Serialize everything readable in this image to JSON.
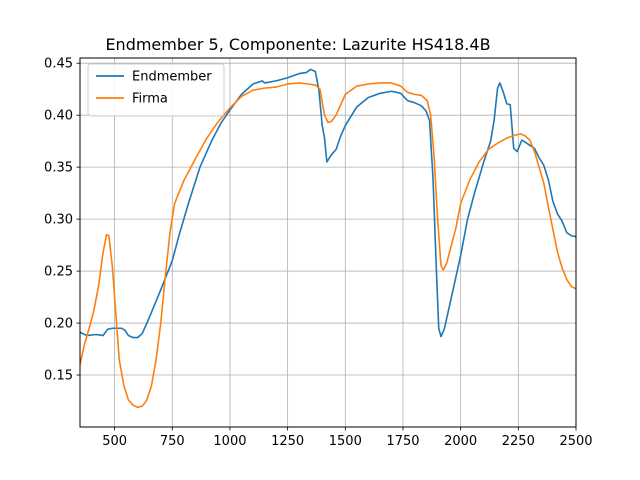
{
  "chart_data": {
    "type": "line",
    "title": "Endmember 5, Componente: Lazurite HS418.4B",
    "xlabel": "",
    "ylabel": "",
    "xlim": [
      350,
      2500
    ],
    "ylim": [
      0.1,
      0.455
    ],
    "xticks": [
      500,
      750,
      1000,
      1250,
      1500,
      1750,
      2000,
      2250,
      2500
    ],
    "yticks": [
      0.15,
      0.2,
      0.25,
      0.3,
      0.35,
      0.4,
      0.45
    ],
    "ytick_format": 2,
    "grid": true,
    "legend_position": "top-left",
    "series": [
      {
        "name": "Endmember",
        "color": "#1f77b4",
        "points": [
          [
            350,
            0.191
          ],
          [
            380,
            0.188
          ],
          [
            420,
            0.189
          ],
          [
            450,
            0.188
          ],
          [
            470,
            0.194
          ],
          [
            490,
            0.195
          ],
          [
            510,
            0.195
          ],
          [
            530,
            0.195
          ],
          [
            545,
            0.193
          ],
          [
            560,
            0.188
          ],
          [
            580,
            0.186
          ],
          [
            600,
            0.186
          ],
          [
            620,
            0.19
          ],
          [
            650,
            0.205
          ],
          [
            700,
            0.232
          ],
          [
            750,
            0.26
          ],
          [
            780,
            0.285
          ],
          [
            820,
            0.315
          ],
          [
            870,
            0.35
          ],
          [
            920,
            0.375
          ],
          [
            960,
            0.392
          ],
          [
            1000,
            0.405
          ],
          [
            1050,
            0.42
          ],
          [
            1100,
            0.43
          ],
          [
            1140,
            0.433
          ],
          [
            1150,
            0.431
          ],
          [
            1200,
            0.433
          ],
          [
            1250,
            0.436
          ],
          [
            1300,
            0.44
          ],
          [
            1330,
            0.441
          ],
          [
            1350,
            0.444
          ],
          [
            1370,
            0.442
          ],
          [
            1385,
            0.425
          ],
          [
            1400,
            0.39
          ],
          [
            1410,
            0.378
          ],
          [
            1420,
            0.355
          ],
          [
            1440,
            0.362
          ],
          [
            1460,
            0.367
          ],
          [
            1480,
            0.38
          ],
          [
            1500,
            0.39
          ],
          [
            1550,
            0.408
          ],
          [
            1600,
            0.417
          ],
          [
            1650,
            0.421
          ],
          [
            1700,
            0.423
          ],
          [
            1740,
            0.421
          ],
          [
            1770,
            0.414
          ],
          [
            1800,
            0.412
          ],
          [
            1830,
            0.409
          ],
          [
            1850,
            0.404
          ],
          [
            1865,
            0.395
          ],
          [
            1880,
            0.34
          ],
          [
            1895,
            0.25
          ],
          [
            1905,
            0.195
          ],
          [
            1915,
            0.187
          ],
          [
            1930,
            0.195
          ],
          [
            1950,
            0.215
          ],
          [
            1980,
            0.245
          ],
          [
            2000,
            0.265
          ],
          [
            2030,
            0.3
          ],
          [
            2060,
            0.325
          ],
          [
            2100,
            0.355
          ],
          [
            2130,
            0.375
          ],
          [
            2145,
            0.395
          ],
          [
            2160,
            0.426
          ],
          [
            2170,
            0.431
          ],
          [
            2185,
            0.422
          ],
          [
            2200,
            0.411
          ],
          [
            2215,
            0.41
          ],
          [
            2230,
            0.368
          ],
          [
            2245,
            0.365
          ],
          [
            2265,
            0.376
          ],
          [
            2280,
            0.374
          ],
          [
            2300,
            0.371
          ],
          [
            2320,
            0.368
          ],
          [
            2340,
            0.359
          ],
          [
            2360,
            0.352
          ],
          [
            2380,
            0.338
          ],
          [
            2400,
            0.317
          ],
          [
            2420,
            0.305
          ],
          [
            2440,
            0.298
          ],
          [
            2460,
            0.287
          ],
          [
            2480,
            0.284
          ],
          [
            2500,
            0.283
          ]
        ]
      },
      {
        "name": "Firma",
        "color": "#ff7f0e",
        "points": [
          [
            350,
            0.16
          ],
          [
            370,
            0.18
          ],
          [
            390,
            0.195
          ],
          [
            410,
            0.212
          ],
          [
            430,
            0.235
          ],
          [
            450,
            0.268
          ],
          [
            465,
            0.285
          ],
          [
            475,
            0.284
          ],
          [
            490,
            0.255
          ],
          [
            505,
            0.21
          ],
          [
            520,
            0.165
          ],
          [
            540,
            0.14
          ],
          [
            560,
            0.126
          ],
          [
            580,
            0.121
          ],
          [
            600,
            0.119
          ],
          [
            620,
            0.12
          ],
          [
            640,
            0.126
          ],
          [
            660,
            0.14
          ],
          [
            680,
            0.165
          ],
          [
            700,
            0.2
          ],
          [
            720,
            0.245
          ],
          [
            740,
            0.287
          ],
          [
            760,
            0.315
          ],
          [
            800,
            0.337
          ],
          [
            850,
            0.358
          ],
          [
            900,
            0.378
          ],
          [
            950,
            0.394
          ],
          [
            1000,
            0.407
          ],
          [
            1050,
            0.418
          ],
          [
            1100,
            0.424
          ],
          [
            1150,
            0.426
          ],
          [
            1200,
            0.427
          ],
          [
            1250,
            0.43
          ],
          [
            1300,
            0.431
          ],
          [
            1340,
            0.43
          ],
          [
            1370,
            0.429
          ],
          [
            1390,
            0.425
          ],
          [
            1410,
            0.4
          ],
          [
            1425,
            0.393
          ],
          [
            1440,
            0.394
          ],
          [
            1460,
            0.4
          ],
          [
            1480,
            0.41
          ],
          [
            1500,
            0.42
          ],
          [
            1550,
            0.428
          ],
          [
            1600,
            0.43
          ],
          [
            1650,
            0.431
          ],
          [
            1700,
            0.431
          ],
          [
            1740,
            0.428
          ],
          [
            1770,
            0.422
          ],
          [
            1800,
            0.42
          ],
          [
            1830,
            0.419
          ],
          [
            1855,
            0.414
          ],
          [
            1870,
            0.4
          ],
          [
            1885,
            0.36
          ],
          [
            1900,
            0.3
          ],
          [
            1915,
            0.255
          ],
          [
            1925,
            0.251
          ],
          [
            1940,
            0.258
          ],
          [
            1960,
            0.275
          ],
          [
            1980,
            0.292
          ],
          [
            2000,
            0.315
          ],
          [
            2040,
            0.338
          ],
          [
            2080,
            0.355
          ],
          [
            2120,
            0.367
          ],
          [
            2160,
            0.373
          ],
          [
            2200,
            0.378
          ],
          [
            2240,
            0.381
          ],
          [
            2260,
            0.382
          ],
          [
            2280,
            0.38
          ],
          [
            2300,
            0.376
          ],
          [
            2320,
            0.365
          ],
          [
            2340,
            0.35
          ],
          [
            2360,
            0.335
          ],
          [
            2380,
            0.312
          ],
          [
            2400,
            0.29
          ],
          [
            2420,
            0.268
          ],
          [
            2440,
            0.253
          ],
          [
            2460,
            0.242
          ],
          [
            2480,
            0.235
          ],
          [
            2500,
            0.233
          ]
        ]
      }
    ]
  }
}
